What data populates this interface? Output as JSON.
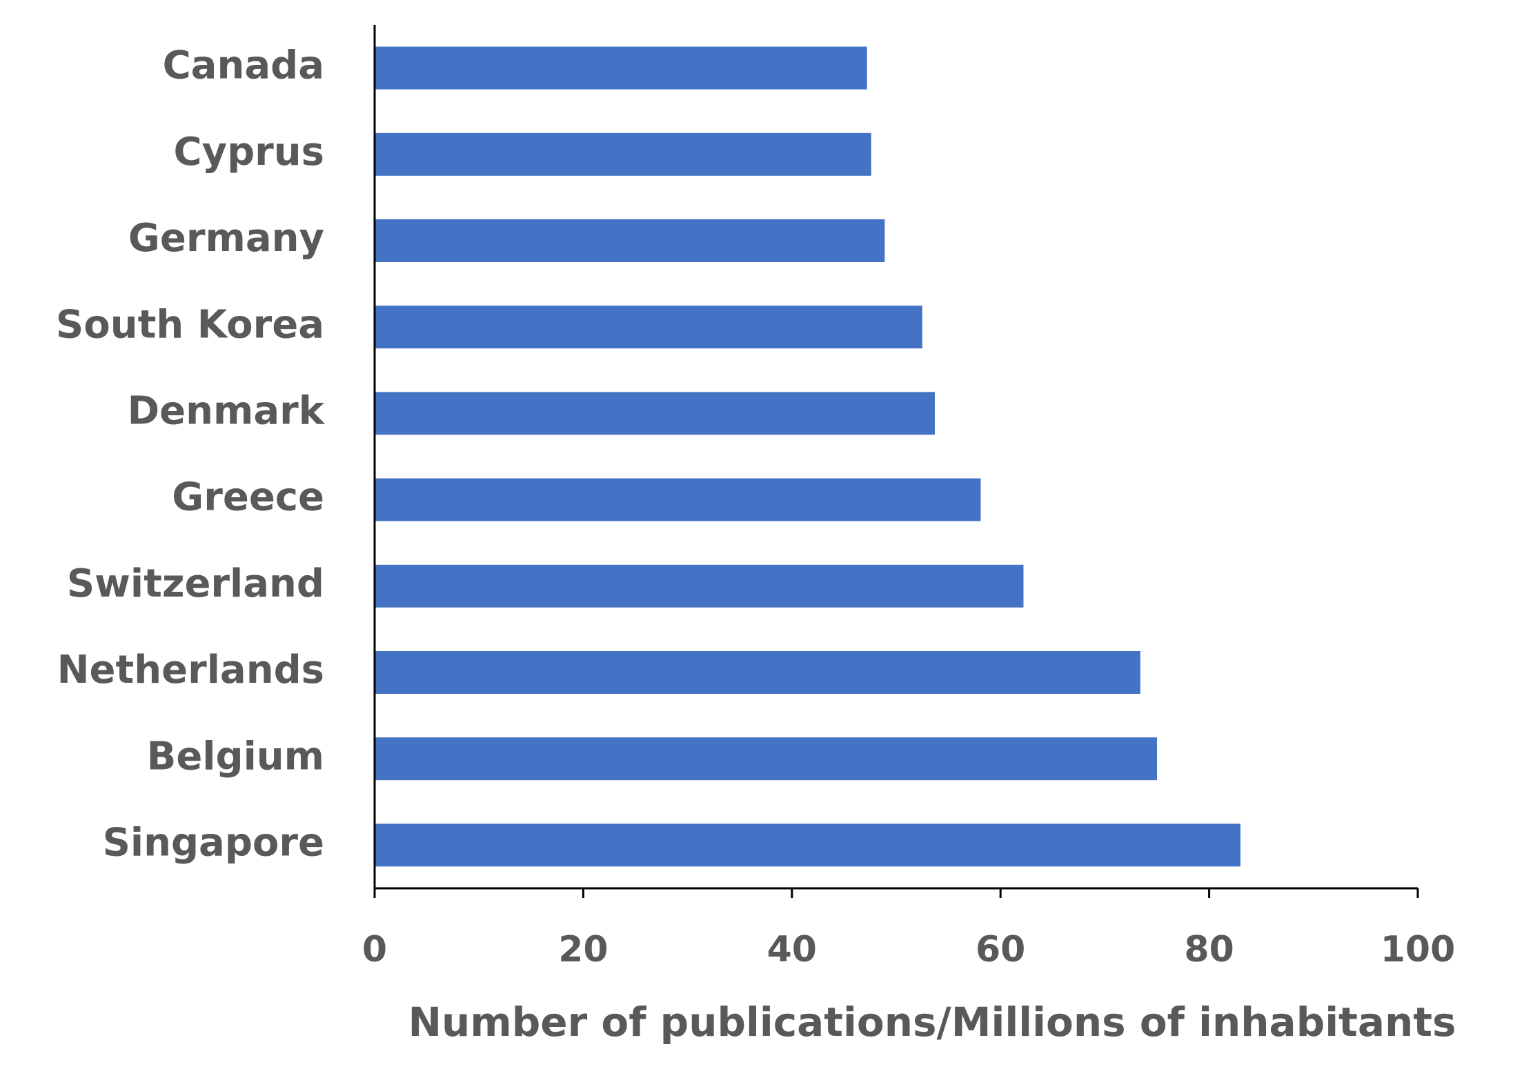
{
  "chart_data": {
    "type": "barh",
    "categories": [
      "Canada",
      "Cyprus",
      "Germany",
      "South Korea",
      "Denmark",
      "Greece",
      "Switzerland",
      "Netherlands",
      "Belgium",
      "Singapore"
    ],
    "values": [
      47.2,
      47.6,
      48.9,
      52.5,
      53.7,
      58.1,
      62.2,
      73.4,
      75,
      83
    ],
    "color": "#4472c4",
    "x_label": "Number of publications/Millions of inhabitants",
    "xlim": [
      0,
      100
    ],
    "xticks": [
      0,
      20,
      40,
      60,
      80,
      100
    ],
    "grid": false
  }
}
